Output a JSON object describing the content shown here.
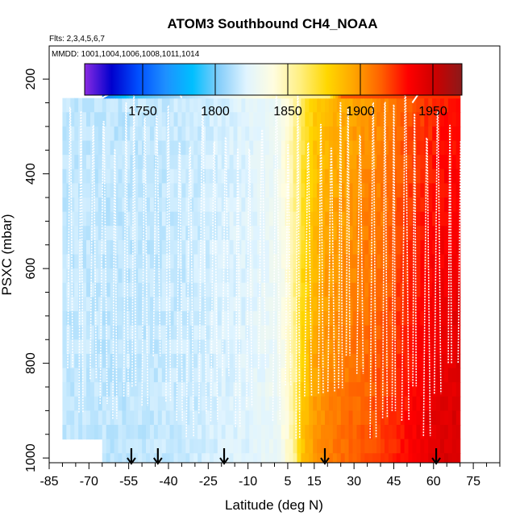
{
  "chart_data": {
    "type": "heatmap",
    "title": "ATOM3 Southbound CH4_NOAA",
    "flights_label": "Flts: 2,3,4,5,6,7",
    "mmdd_label": "MMDD: 1001,1004,1006,1008,1011,1014",
    "xlabel": "Latitude (deg N)",
    "ylabel": "PSXC (mbar)",
    "xlim": [
      -85,
      85
    ],
    "ylim": [
      1010,
      130
    ],
    "x_ticks": [
      -85,
      -70,
      -55,
      -40,
      -25,
      -10,
      5,
      15,
      30,
      45,
      60,
      75
    ],
    "y_ticks": [
      200,
      400,
      600,
      800,
      1000
    ],
    "colorbar": {
      "range": [
        1710,
        1970
      ],
      "ticks": [
        1750,
        1800,
        1850,
        1900,
        1950
      ],
      "colors": [
        "#8a2be2",
        "#0000cd",
        "#0050ff",
        "#1e90ff",
        "#00bfff",
        "#87cefa",
        "#e0f4ff",
        "#fffde0",
        "#ffef80",
        "#ffd700",
        "#ffa500",
        "#ff6000",
        "#ff0000",
        "#cd0000",
        "#8b1a1a"
      ]
    },
    "ch4_profile_by_latitude": [
      {
        "lat": -80,
        "ch4": 1815
      },
      {
        "lat": -70,
        "ch4": 1815
      },
      {
        "lat": -60,
        "ch4": 1814
      },
      {
        "lat": -50,
        "ch4": 1815
      },
      {
        "lat": -40,
        "ch4": 1816
      },
      {
        "lat": -30,
        "ch4": 1817
      },
      {
        "lat": -20,
        "ch4": 1820
      },
      {
        "lat": -10,
        "ch4": 1822
      },
      {
        "lat": 0,
        "ch4": 1828
      },
      {
        "lat": 5,
        "ch4": 1845
      },
      {
        "lat": 10,
        "ch4": 1875
      },
      {
        "lat": 15,
        "ch4": 1892
      },
      {
        "lat": 20,
        "ch4": 1898
      },
      {
        "lat": 30,
        "ch4": 1905
      },
      {
        "lat": 40,
        "ch4": 1912
      },
      {
        "lat": 50,
        "ch4": 1925
      },
      {
        "lat": 60,
        "ch4": 1935
      },
      {
        "lat": 70,
        "ch4": 1940
      }
    ],
    "upper_layer_ch4": [
      {
        "lat": -65,
        "ch4": 1760
      },
      {
        "lat": -55,
        "ch4": 1790
      },
      {
        "lat": -40,
        "ch4": 1805
      },
      {
        "lat": -20,
        "ch4": 1825
      },
      {
        "lat": 0,
        "ch4": 1845
      },
      {
        "lat": 20,
        "ch4": 1860
      },
      {
        "lat": 25,
        "ch4": 1915
      },
      {
        "lat": 45,
        "ch4": 1920
      },
      {
        "lat": 65,
        "ch4": 1925
      }
    ],
    "arrow_latitudes": [
      -54,
      -44,
      -19,
      19,
      61
    ]
  }
}
